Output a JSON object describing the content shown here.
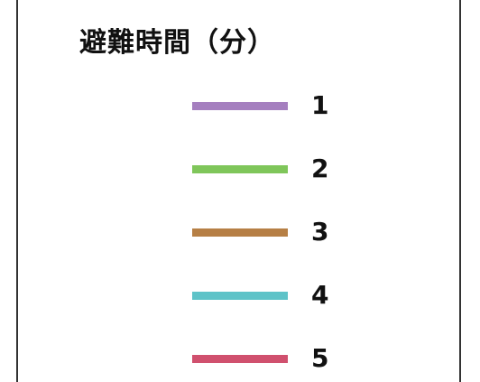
{
  "legend": {
    "title": "避難時間（分）",
    "items": [
      {
        "label": "1",
        "color": "#a57fbf"
      },
      {
        "label": "2",
        "color": "#7fc65a"
      },
      {
        "label": "3",
        "color": "#b67f45"
      },
      {
        "label": "4",
        "color": "#5ec3c8"
      },
      {
        "label": "5",
        "color": "#d0506e"
      }
    ]
  }
}
